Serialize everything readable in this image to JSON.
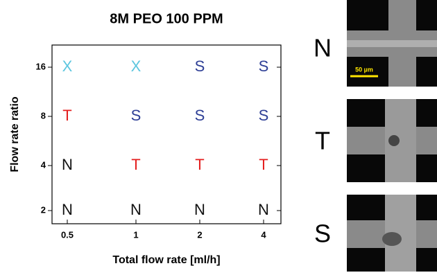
{
  "figure": {
    "title": "8M PEO 100 PPM",
    "x_label": "Total flow rate [ml/h]",
    "y_label": "Flow rate ratio",
    "x_categories": [
      0.5,
      1,
      2,
      4
    ],
    "y_categories": [
      2,
      4,
      8,
      16
    ],
    "cells": [
      [
        "N",
        "N",
        "N",
        "N"
      ],
      [
        "N",
        "T",
        "T",
        "T"
      ],
      [
        "T",
        "S",
        "S",
        "S"
      ],
      [
        "X",
        "X",
        "S",
        "S"
      ]
    ],
    "colors": {
      "N": "#111111",
      "T": "#e41e1e",
      "S": "#2e3f96",
      "X": "#5cc6df"
    },
    "panels": [
      {
        "label": "N",
        "scale_bar": "50 µm"
      },
      {
        "label": "T"
      },
      {
        "label": "S"
      }
    ]
  }
}
